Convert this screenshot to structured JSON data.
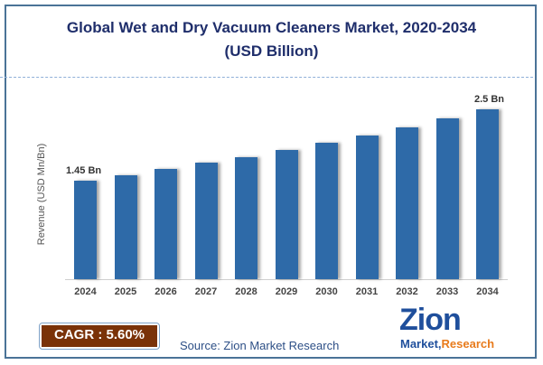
{
  "header": {
    "title_line1": "Global Wet and Dry Vacuum Cleaners Market, 2020-2034",
    "title_line2": "(USD Billion)"
  },
  "footer": {
    "cagr_label": "CAGR :  5.60%",
    "source": "Source: Zion Market Research",
    "logo_main": "Zion",
    "logo_sub_1": "Market",
    "logo_sub_2": "Research"
  },
  "colors": {
    "bar": "#2e6aa8",
    "title": "#1f2e6b",
    "cagr_bg": "#7a3208",
    "frame": "#4a7397"
  },
  "chart_data": {
    "type": "bar",
    "title": "Global Wet and Dry Vacuum Cleaners Market, 2020-2034 (USD Billion)",
    "xlabel": "",
    "ylabel": "Revenue (USD Mn/Bn)",
    "categories": [
      "2024",
      "2025",
      "2026",
      "2027",
      "2028",
      "2029",
      "2030",
      "2031",
      "2032",
      "2033",
      "2034"
    ],
    "values": [
      1.45,
      1.53,
      1.62,
      1.71,
      1.8,
      1.9,
      2.01,
      2.12,
      2.24,
      2.37,
      2.5
    ],
    "data_labels": {
      "2024": "1.45 Bn",
      "2034": "2.5 Bn"
    },
    "ylim": [
      0,
      2.6
    ],
    "grid": false,
    "legend": "none",
    "annotations": [
      "CAGR : 5.60%"
    ]
  }
}
